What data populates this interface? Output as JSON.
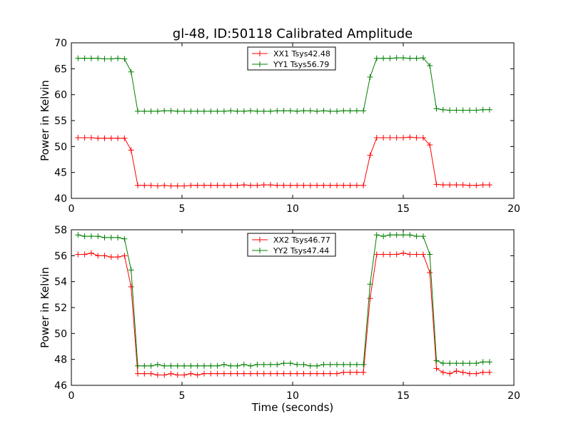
{
  "title": "gl-48, ID:50118 Calibrated Amplitude",
  "xlabel": "Time (seconds)",
  "chart_data": [
    {
      "type": "line",
      "ylabel": "Power in Kelvin",
      "xlim": [
        0,
        20
      ],
      "ylim": [
        40,
        70
      ],
      "xticks": [
        0,
        5,
        10,
        15,
        20
      ],
      "yticks": [
        40,
        45,
        50,
        55,
        60,
        65,
        70
      ],
      "legend_position": "top-center",
      "series": [
        {
          "name": "XX1 Tsys42.48",
          "color": "#ff0000",
          "x": [
            0.3,
            0.6,
            0.9,
            1.2,
            1.5,
            1.8,
            2.1,
            2.4,
            2.7,
            3.0,
            3.3,
            3.6,
            3.9,
            4.2,
            4.5,
            4.8,
            5.1,
            5.4,
            5.7,
            6.0,
            6.3,
            6.6,
            6.9,
            7.2,
            7.5,
            7.8,
            8.1,
            8.4,
            8.7,
            9.0,
            9.3,
            9.6,
            9.9,
            10.2,
            10.5,
            10.8,
            11.1,
            11.4,
            11.7,
            12.0,
            12.3,
            12.6,
            12.9,
            13.2,
            13.5,
            13.8,
            14.1,
            14.4,
            14.7,
            15.0,
            15.3,
            15.6,
            15.9,
            16.2,
            16.5,
            16.8,
            17.1,
            17.4,
            17.7,
            18.0,
            18.3,
            18.6,
            18.9
          ],
          "y": [
            51.7,
            51.7,
            51.7,
            51.6,
            51.6,
            51.6,
            51.6,
            51.6,
            49.3,
            42.5,
            42.5,
            42.5,
            42.4,
            42.5,
            42.4,
            42.4,
            42.4,
            42.5,
            42.5,
            42.5,
            42.5,
            42.5,
            42.5,
            42.5,
            42.5,
            42.6,
            42.5,
            42.5,
            42.6,
            42.6,
            42.5,
            42.5,
            42.5,
            42.5,
            42.5,
            42.5,
            42.5,
            42.5,
            42.5,
            42.5,
            42.5,
            42.5,
            42.5,
            42.5,
            48.3,
            51.7,
            51.7,
            51.7,
            51.7,
            51.7,
            51.8,
            51.7,
            51.7,
            50.3,
            42.7,
            42.6,
            42.6,
            42.6,
            42.6,
            42.5,
            42.5,
            42.6,
            42.6
          ]
        },
        {
          "name": "YY1 Tsys56.79",
          "color": "#008000",
          "x": [
            0.3,
            0.6,
            0.9,
            1.2,
            1.5,
            1.8,
            2.1,
            2.4,
            2.7,
            3.0,
            3.3,
            3.6,
            3.9,
            4.2,
            4.5,
            4.8,
            5.1,
            5.4,
            5.7,
            6.0,
            6.3,
            6.6,
            6.9,
            7.2,
            7.5,
            7.8,
            8.1,
            8.4,
            8.7,
            9.0,
            9.3,
            9.6,
            9.9,
            10.2,
            10.5,
            10.8,
            11.1,
            11.4,
            11.7,
            12.0,
            12.3,
            12.6,
            12.9,
            13.2,
            13.5,
            13.8,
            14.1,
            14.4,
            14.7,
            15.0,
            15.3,
            15.6,
            15.9,
            16.2,
            16.5,
            16.8,
            17.1,
            17.4,
            17.7,
            18.0,
            18.3,
            18.6,
            18.9
          ],
          "y": [
            67.0,
            67.0,
            67.0,
            67.0,
            66.9,
            66.9,
            67.0,
            66.9,
            64.4,
            56.8,
            56.8,
            56.8,
            56.8,
            56.9,
            56.9,
            56.8,
            56.8,
            56.8,
            56.8,
            56.8,
            56.8,
            56.8,
            56.8,
            56.9,
            56.8,
            56.8,
            56.9,
            56.8,
            56.8,
            56.8,
            56.9,
            56.9,
            56.9,
            56.8,
            56.9,
            56.9,
            56.8,
            56.9,
            56.8,
            56.8,
            56.9,
            56.9,
            56.9,
            56.9,
            63.4,
            67.0,
            67.0,
            67.0,
            67.1,
            67.1,
            67.0,
            67.0,
            67.1,
            65.6,
            57.3,
            57.1,
            57.0,
            57.0,
            57.0,
            57.0,
            57.0,
            57.1,
            57.1
          ]
        }
      ]
    },
    {
      "type": "line",
      "ylabel": "Power in Kelvin",
      "xlim": [
        0,
        20
      ],
      "ylim": [
        46,
        58
      ],
      "xticks": [
        0,
        5,
        10,
        15,
        20
      ],
      "yticks": [
        46,
        48,
        50,
        52,
        54,
        56,
        58
      ],
      "legend_position": "top-center",
      "series": [
        {
          "name": "XX2 Tsys46.77",
          "color": "#ff0000",
          "x": [
            0.3,
            0.6,
            0.9,
            1.2,
            1.5,
            1.8,
            2.1,
            2.4,
            2.7,
            3.0,
            3.3,
            3.6,
            3.9,
            4.2,
            4.5,
            4.8,
            5.1,
            5.4,
            5.7,
            6.0,
            6.3,
            6.6,
            6.9,
            7.2,
            7.5,
            7.8,
            8.1,
            8.4,
            8.7,
            9.0,
            9.3,
            9.6,
            9.9,
            10.2,
            10.5,
            10.8,
            11.1,
            11.4,
            11.7,
            12.0,
            12.3,
            12.6,
            12.9,
            13.2,
            13.5,
            13.8,
            14.1,
            14.4,
            14.7,
            15.0,
            15.3,
            15.6,
            15.9,
            16.2,
            16.5,
            16.8,
            17.1,
            17.4,
            17.7,
            18.0,
            18.3,
            18.6,
            18.9
          ],
          "y": [
            56.1,
            56.1,
            56.2,
            56.0,
            56.0,
            55.9,
            55.9,
            56.0,
            53.6,
            46.9,
            46.9,
            46.9,
            46.8,
            46.8,
            46.9,
            46.8,
            46.8,
            46.9,
            46.8,
            46.9,
            46.9,
            46.9,
            46.9,
            46.9,
            46.9,
            46.9,
            46.9,
            46.9,
            46.9,
            46.9,
            46.9,
            46.9,
            46.9,
            46.9,
            46.9,
            46.9,
            46.9,
            46.9,
            46.9,
            46.9,
            47.0,
            47.0,
            47.0,
            47.0,
            52.7,
            56.1,
            56.1,
            56.1,
            56.1,
            56.2,
            56.1,
            56.1,
            56.1,
            54.7,
            47.3,
            47.0,
            46.9,
            47.1,
            47.0,
            46.9,
            46.9,
            47.0,
            47.0
          ]
        },
        {
          "name": "YY2 Tsys47.44",
          "color": "#008000",
          "x": [
            0.3,
            0.6,
            0.9,
            1.2,
            1.5,
            1.8,
            2.1,
            2.4,
            2.7,
            3.0,
            3.3,
            3.6,
            3.9,
            4.2,
            4.5,
            4.8,
            5.1,
            5.4,
            5.7,
            6.0,
            6.3,
            6.6,
            6.9,
            7.2,
            7.5,
            7.8,
            8.1,
            8.4,
            8.7,
            9.0,
            9.3,
            9.6,
            9.9,
            10.2,
            10.5,
            10.8,
            11.1,
            11.4,
            11.7,
            12.0,
            12.3,
            12.6,
            12.9,
            13.2,
            13.5,
            13.8,
            14.1,
            14.4,
            14.7,
            15.0,
            15.3,
            15.6,
            15.9,
            16.2,
            16.5,
            16.8,
            17.1,
            17.4,
            17.7,
            18.0,
            18.3,
            18.6,
            18.9
          ],
          "y": [
            57.6,
            57.5,
            57.5,
            57.5,
            57.4,
            57.4,
            57.4,
            57.3,
            54.9,
            47.5,
            47.5,
            47.5,
            47.6,
            47.5,
            47.5,
            47.5,
            47.5,
            47.5,
            47.5,
            47.5,
            47.5,
            47.5,
            47.6,
            47.5,
            47.5,
            47.6,
            47.5,
            47.6,
            47.6,
            47.6,
            47.6,
            47.7,
            47.7,
            47.6,
            47.6,
            47.5,
            47.5,
            47.6,
            47.6,
            47.6,
            47.6,
            47.6,
            47.6,
            47.6,
            53.8,
            57.6,
            57.5,
            57.6,
            57.6,
            57.6,
            57.6,
            57.5,
            57.5,
            56.1,
            47.9,
            47.7,
            47.7,
            47.7,
            47.7,
            47.7,
            47.7,
            47.8,
            47.8
          ]
        }
      ]
    }
  ]
}
